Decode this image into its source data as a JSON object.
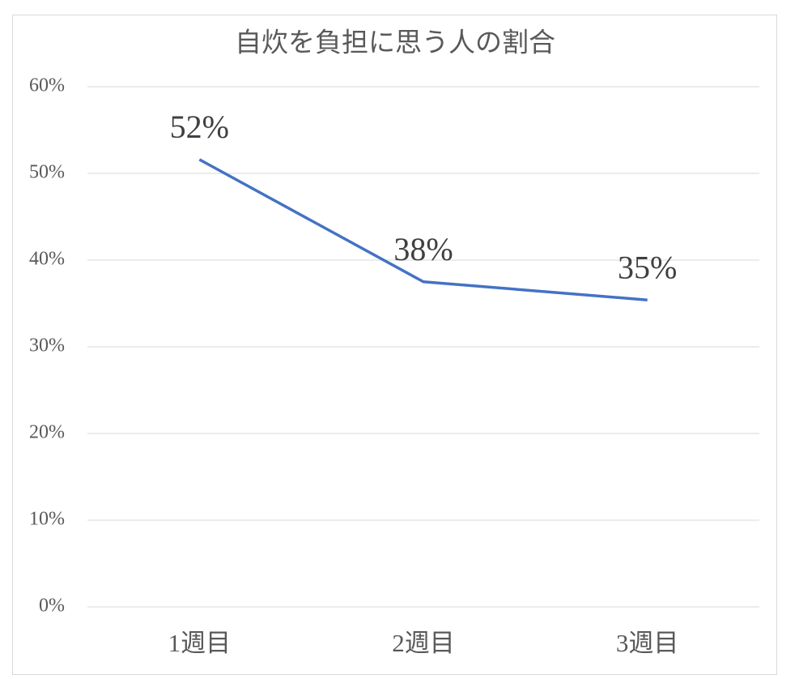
{
  "chart_data": {
    "type": "line",
    "title": "自炊を負担に思う人の割合",
    "categories": [
      "1週目",
      "2週目",
      "3週目"
    ],
    "series": [
      {
        "name": "自炊を負担に思う人の割合",
        "color": "#4472c4",
        "values": [
          51.6,
          37.5,
          35.4
        ],
        "value_labels": [
          "52%",
          "38%",
          "35%"
        ]
      }
    ],
    "ylim": [
      0,
      60
    ],
    "yticks": [
      {
        "value": 0,
        "label": "0%"
      },
      {
        "value": 10,
        "label": "10%"
      },
      {
        "value": 20,
        "label": "20%"
      },
      {
        "value": 30,
        "label": "30%"
      },
      {
        "value": 40,
        "label": "40%"
      },
      {
        "value": 50,
        "label": "50%"
      },
      {
        "value": 60,
        "label": "60%"
      }
    ],
    "grid": true
  }
}
